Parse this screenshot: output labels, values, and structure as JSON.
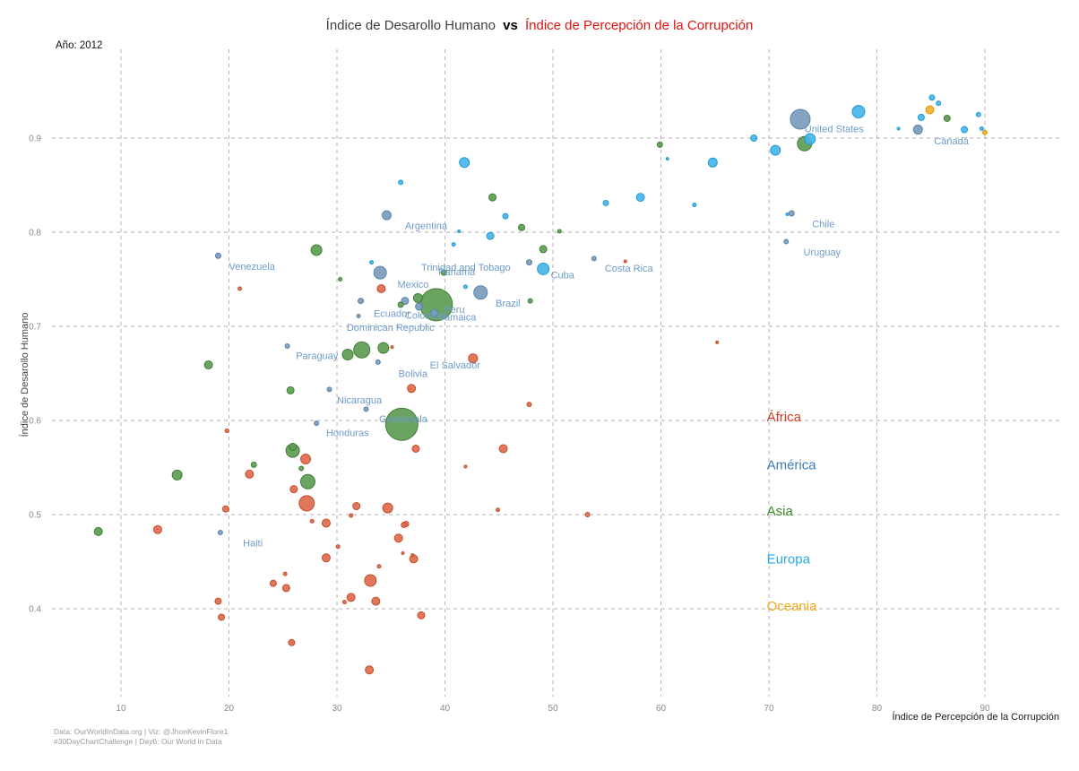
{
  "title": {
    "part1": "Índice de Desarollo Humano",
    "separator": "vs",
    "part2": "Índice de Percepción de la Corrupción"
  },
  "annotation_year": "Año: 2012",
  "axes": {
    "x": {
      "label": "Índice de Percepción de la Corrupción",
      "ticks": [
        10,
        20,
        30,
        40,
        50,
        60,
        70,
        80,
        90
      ],
      "range": [
        4,
        96
      ]
    },
    "y": {
      "label": "Índice de Desarollo Humano",
      "ticks": [
        0.4,
        0.5,
        0.6,
        0.7,
        0.8,
        0.9
      ],
      "tick_labels": [
        "0.4",
        "0.5",
        "0.6",
        "0.7",
        "0.8",
        "0.9"
      ],
      "range": [
        0.3,
        0.96
      ]
    }
  },
  "colors": {
    "title_part1": "#3d3d3d",
    "title_part2": "#e3120b",
    "africa": {
      "fill": "#de6b4c",
      "stroke": "#c24f2e",
      "text": "#d93a20"
    },
    "america": {
      "fill": "#7b9cbd",
      "stroke": "#5a82a8",
      "text": "#3d7ab5"
    },
    "asia": {
      "fill": "#5d9c52",
      "stroke": "#417f37",
      "text": "#3b8c28"
    },
    "europa": {
      "fill": "#45b5e8",
      "stroke": "#259ad0",
      "text": "#27aae1"
    },
    "oceania": {
      "fill": "#f2b12e",
      "stroke": "#d69512",
      "text": "#f0a819"
    }
  },
  "legend": {
    "x": 69.8,
    "items": [
      {
        "key": "africa",
        "label": "África",
        "y": 0.604
      },
      {
        "key": "america",
        "label": "América",
        "y": 0.553
      },
      {
        "key": "asia",
        "label": "Asia",
        "y": 0.504
      },
      {
        "key": "europa",
        "label": "Europa",
        "y": 0.453
      },
      {
        "key": "oceania",
        "label": "Oceania",
        "y": 0.403
      }
    ]
  },
  "footer": {
    "line1": "Data: OurWorldInData.org | Viz: @JhonKevinFlore1",
    "line2": "#30DayChartChallenge | Day6: Our World in Data"
  },
  "chart_data": {
    "type": "scatter",
    "title": "Índice de Desarollo Humano vs Índice de Percepción de la Corrupción",
    "xlabel": "Índice de Percepción de la Corrupción",
    "ylabel": "Índice de Desarollo Humano",
    "xlim": [
      4,
      96
    ],
    "ylim": [
      0.3,
      0.96
    ],
    "grid": "dashed",
    "legend_position": "right-inside",
    "size_encoding": "population (bubble radius, px)",
    "series": [
      {
        "name": "África",
        "key": "africa",
        "points": [
          [
            21.0,
            0.74,
            2
          ],
          [
            34.1,
            0.74,
            4.5
          ],
          [
            35.1,
            0.678,
            1.5
          ],
          [
            56.7,
            0.769,
            1.5
          ],
          [
            65.2,
            0.683,
            1.5
          ],
          [
            42.6,
            0.666,
            5
          ],
          [
            36.9,
            0.634,
            4.5
          ],
          [
            37.3,
            0.57,
            4
          ],
          [
            45.4,
            0.57,
            4.5
          ],
          [
            41.9,
            0.551,
            1.5
          ],
          [
            47.8,
            0.617,
            2.5
          ],
          [
            44.9,
            0.505,
            2
          ],
          [
            53.2,
            0.5,
            2.5
          ],
          [
            36.4,
            0.49,
            3
          ],
          [
            35.7,
            0.475,
            4.5
          ],
          [
            36.1,
            0.459,
            1.5
          ],
          [
            37.0,
            0.457,
            1.5
          ],
          [
            27.1,
            0.559,
            5.5
          ],
          [
            21.9,
            0.543,
            4.5
          ],
          [
            26.0,
            0.527,
            4
          ],
          [
            27.2,
            0.512,
            8.5
          ],
          [
            19.7,
            0.506,
            3.5
          ],
          [
            31.8,
            0.509,
            4
          ],
          [
            34.7,
            0.507,
            5.5
          ],
          [
            31.3,
            0.499,
            2
          ],
          [
            13.4,
            0.484,
            4.5
          ],
          [
            27.7,
            0.493,
            2
          ],
          [
            29.0,
            0.491,
            4.5
          ],
          [
            36.2,
            0.489,
            3
          ],
          [
            30.1,
            0.466,
            2
          ],
          [
            29.0,
            0.454,
            4.5
          ],
          [
            37.1,
            0.453,
            4.5
          ],
          [
            33.9,
            0.445,
            2
          ],
          [
            25.2,
            0.437,
            2
          ],
          [
            24.1,
            0.427,
            3.5
          ],
          [
            25.3,
            0.422,
            4
          ],
          [
            33.1,
            0.43,
            6.5
          ],
          [
            31.3,
            0.412,
            4.5
          ],
          [
            30.7,
            0.407,
            2
          ],
          [
            33.6,
            0.408,
            4.5
          ],
          [
            19.0,
            0.408,
            3.5
          ],
          [
            19.3,
            0.391,
            3.5
          ],
          [
            37.8,
            0.393,
            4
          ],
          [
            25.8,
            0.364,
            3.5
          ],
          [
            33.0,
            0.335,
            4.5
          ],
          [
            19.8,
            0.589,
            2
          ]
        ]
      },
      {
        "name": "América",
        "key": "america",
        "points": [
          [
            72.9,
            0.92,
            11
          ],
          [
            83.8,
            0.909,
            5
          ],
          [
            72.1,
            0.82,
            3
          ],
          [
            71.6,
            0.79,
            2.5
          ],
          [
            34.6,
            0.818,
            5
          ],
          [
            19.0,
            0.775,
            3
          ],
          [
            34.0,
            0.757,
            7
          ],
          [
            43.3,
            0.736,
            7.5
          ],
          [
            47.8,
            0.768,
            3
          ],
          [
            53.8,
            0.772,
            2.5
          ],
          [
            32.2,
            0.727,
            3
          ],
          [
            36.3,
            0.727,
            4
          ],
          [
            37.6,
            0.721,
            4
          ],
          [
            39.0,
            0.714,
            4
          ],
          [
            32.0,
            0.711,
            2
          ],
          [
            25.4,
            0.679,
            2.5
          ],
          [
            33.8,
            0.662,
            2.5
          ],
          [
            29.3,
            0.633,
            2.5
          ],
          [
            32.7,
            0.612,
            2.5
          ],
          [
            28.1,
            0.597,
            2.5
          ],
          [
            19.2,
            0.481,
            2.5
          ]
        ]
      },
      {
        "name": "Asia",
        "key": "asia",
        "points": [
          [
            73.3,
            0.894,
            8
          ],
          [
            86.5,
            0.921,
            3.5
          ],
          [
            59.9,
            0.893,
            3
          ],
          [
            44.4,
            0.837,
            4
          ],
          [
            47.1,
            0.805,
            3.5
          ],
          [
            50.6,
            0.801,
            2
          ],
          [
            49.1,
            0.782,
            4
          ],
          [
            47.9,
            0.727,
            2.5
          ],
          [
            28.1,
            0.781,
            6
          ],
          [
            30.3,
            0.75,
            2
          ],
          [
            37.5,
            0.73,
            5
          ],
          [
            39.2,
            0.723,
            18
          ],
          [
            39.9,
            0.757,
            3
          ],
          [
            35.9,
            0.723,
            3
          ],
          [
            32.3,
            0.675,
            9
          ],
          [
            31.0,
            0.67,
            6
          ],
          [
            34.3,
            0.677,
            6
          ],
          [
            18.1,
            0.659,
            4.5
          ],
          [
            25.7,
            0.632,
            4
          ],
          [
            25.9,
            0.572,
            4
          ],
          [
            15.2,
            0.542,
            5.5
          ],
          [
            25.9,
            0.568,
            7.5
          ],
          [
            27.3,
            0.535,
            8
          ],
          [
            22.3,
            0.553,
            3
          ],
          [
            26.7,
            0.549,
            2.5
          ],
          [
            7.9,
            0.482,
            4.5
          ],
          [
            36.0,
            0.596,
            18
          ]
        ]
      },
      {
        "name": "Europa",
        "key": "europa",
        "points": [
          [
            41.8,
            0.874,
            5.5
          ],
          [
            45.6,
            0.817,
            3
          ],
          [
            41.3,
            0.801,
            1.5
          ],
          [
            40.8,
            0.787,
            2
          ],
          [
            44.2,
            0.796,
            4
          ],
          [
            41.9,
            0.742,
            2
          ],
          [
            33.2,
            0.768,
            2
          ],
          [
            49.1,
            0.761,
            6.5
          ],
          [
            54.9,
            0.831,
            3
          ],
          [
            58.1,
            0.837,
            4.5
          ],
          [
            63.1,
            0.829,
            2
          ],
          [
            60.6,
            0.878,
            1.5
          ],
          [
            64.8,
            0.874,
            5
          ],
          [
            68.6,
            0.9,
            3.5
          ],
          [
            70.6,
            0.887,
            5.5
          ],
          [
            71.7,
            0.819,
            1.5
          ],
          [
            73.8,
            0.899,
            6
          ],
          [
            78.3,
            0.928,
            7
          ],
          [
            82.0,
            0.91,
            1.5
          ],
          [
            84.1,
            0.922,
            3.5
          ],
          [
            85.1,
            0.943,
            3
          ],
          [
            85.7,
            0.937,
            2.5
          ],
          [
            88.1,
            0.909,
            3.5
          ],
          [
            89.4,
            0.925,
            2.5
          ],
          [
            89.7,
            0.91,
            2
          ],
          [
            35.9,
            0.853,
            2.5
          ]
        ]
      },
      {
        "name": "Oceania",
        "key": "oceania",
        "points": [
          [
            84.9,
            0.93,
            4.5
          ],
          [
            90.0,
            0.906,
            2.5
          ]
        ]
      }
    ],
    "country_labels": [
      {
        "name": "United States",
        "x": 73.3,
        "y": 0.91
      },
      {
        "name": "Canadá",
        "x": 85.3,
        "y": 0.897
      },
      {
        "name": "Chile",
        "x": 74.0,
        "y": 0.809
      },
      {
        "name": "Uruguay",
        "x": 73.2,
        "y": 0.779
      },
      {
        "name": "Argentina",
        "x": 36.3,
        "y": 0.807
      },
      {
        "name": "Venezuela",
        "x": 20.0,
        "y": 0.764
      },
      {
        "name": "Trinidad and Tobago",
        "x": 37.8,
        "y": 0.763
      },
      {
        "name": "Panamá",
        "x": 39.4,
        "y": 0.758
      },
      {
        "name": "Cuba",
        "x": 49.8,
        "y": 0.755
      },
      {
        "name": "Costa Rica",
        "x": 54.8,
        "y": 0.762
      },
      {
        "name": "Mexico",
        "x": 35.6,
        "y": 0.745
      },
      {
        "name": "Brazil",
        "x": 44.7,
        "y": 0.725
      },
      {
        "name": "Peru",
        "x": 39.9,
        "y": 0.718
      },
      {
        "name": "Ecuador",
        "x": 33.4,
        "y": 0.714
      },
      {
        "name": "Colombia",
        "x": 36.3,
        "y": 0.712
      },
      {
        "name": "Jamaica",
        "x": 39.5,
        "y": 0.71
      },
      {
        "name": "Dominican Republic",
        "x": 30.9,
        "y": 0.699
      },
      {
        "name": "Paraguay",
        "x": 26.2,
        "y": 0.669
      },
      {
        "name": "El Salvador",
        "x": 38.6,
        "y": 0.659
      },
      {
        "name": "Bolivia",
        "x": 35.7,
        "y": 0.65
      },
      {
        "name": "Nicaragua",
        "x": 30.0,
        "y": 0.622
      },
      {
        "name": "Guatemala",
        "x": 33.9,
        "y": 0.602
      },
      {
        "name": "Honduras",
        "x": 29.0,
        "y": 0.587
      },
      {
        "name": "Haiti",
        "x": 21.3,
        "y": 0.47
      }
    ]
  }
}
